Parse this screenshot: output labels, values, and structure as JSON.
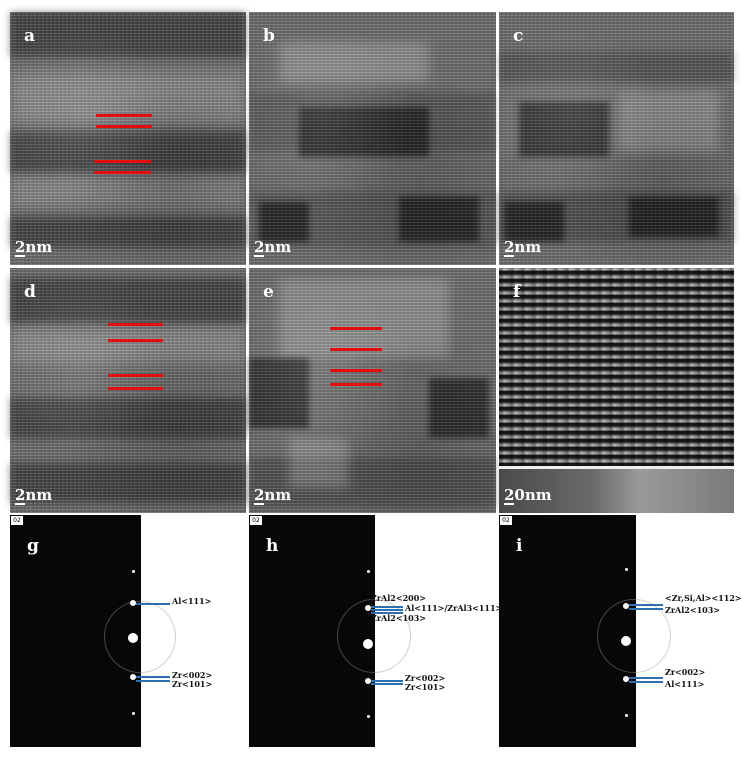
{
  "panels": {
    "a": {
      "letter": "a",
      "scale": "2nm"
    },
    "b": {
      "letter": "b",
      "scale": "2nm"
    },
    "c": {
      "letter": "c",
      "scale": "2nm"
    },
    "d": {
      "letter": "d",
      "scale": "2nm"
    },
    "e": {
      "letter": "e",
      "scale": "2nm"
    },
    "f": {
      "letter": "f",
      "scale": "20nm"
    },
    "g": {
      "letter": "g",
      "tag": "02",
      "labels": [
        "Al<111>",
        "Zr<002>",
        "Zr<101>"
      ]
    },
    "h": {
      "letter": "h",
      "tag": "02",
      "labels": [
        "ZrAl2<200>",
        "Al<111>/ZrAl3<111>",
        "ZrAl2<103>",
        "Zr<002>",
        "Zr<101>"
      ]
    },
    "i": {
      "letter": "i",
      "tag": "02",
      "labels": [
        "<Zr,Si,Al><112>",
        "ZrAl2<103>",
        "Zr<002>",
        "Al<111>"
      ]
    }
  },
  "colors": {
    "marker_lines": "#e01010",
    "index_lines": "#2f6fb0"
  }
}
